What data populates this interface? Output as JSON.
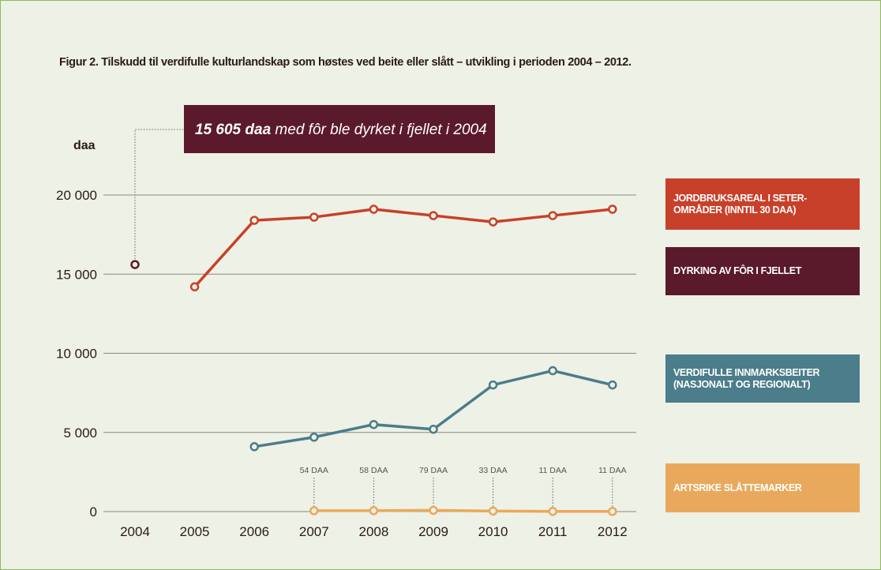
{
  "chart_data": {
    "type": "line",
    "title": "Figur 2. Tilskudd til verdifulle kulturlandskap som høstes ved beite eller slått – utvikling i perioden 2004 – 2012.",
    "y_label": "daa",
    "annotation_bold": "15 605 daa",
    "annotation_text": "med fôr ble dyrket i fjellet i 2004",
    "categories": [
      "2004",
      "2005",
      "2006",
      "2007",
      "2008",
      "2009",
      "2010",
      "2011",
      "2012"
    ],
    "ylim": [
      0,
      20000
    ],
    "yticks": [
      0,
      {
        "value": 5000,
        "label": "5 000"
      },
      {
        "value": 10000,
        "label": "10 000"
      },
      {
        "value": 15000,
        "label": "15 000"
      },
      {
        "value": 20000,
        "label": "20 000"
      }
    ],
    "grid": true,
    "series": [
      {
        "name": "JORDBRUKSAREAL I SETER-OMRÅDER (INNTIL 30 DAA)",
        "color": "#c8402a",
        "values": [
          null,
          14200,
          18400,
          18600,
          19100,
          18700,
          18300,
          18700,
          19100
        ]
      },
      {
        "name": "DYRKING AV FÔR I FJELLET",
        "color": "#5a1a2c",
        "values": [
          15605,
          null,
          null,
          null,
          null,
          null,
          null,
          null,
          null
        ]
      },
      {
        "name": "VERDIFULLE INNMARKSBEITER (NASJONALT OG REGIONALT)",
        "color": "#4b7d8a",
        "values": [
          null,
          null,
          4100,
          4700,
          5500,
          5200,
          8000,
          8900,
          8000
        ]
      },
      {
        "name": "ARTSRIKE SLÅTTEMARKER",
        "color": "#e9a95c",
        "values": [
          null,
          null,
          null,
          54,
          58,
          79,
          33,
          11,
          11
        ],
        "value_labels": [
          null,
          null,
          null,
          "54 DAA",
          "58 DAA",
          "79 DAA",
          "33 DAA",
          "11 DAA",
          "11 DAA"
        ]
      }
    ]
  }
}
